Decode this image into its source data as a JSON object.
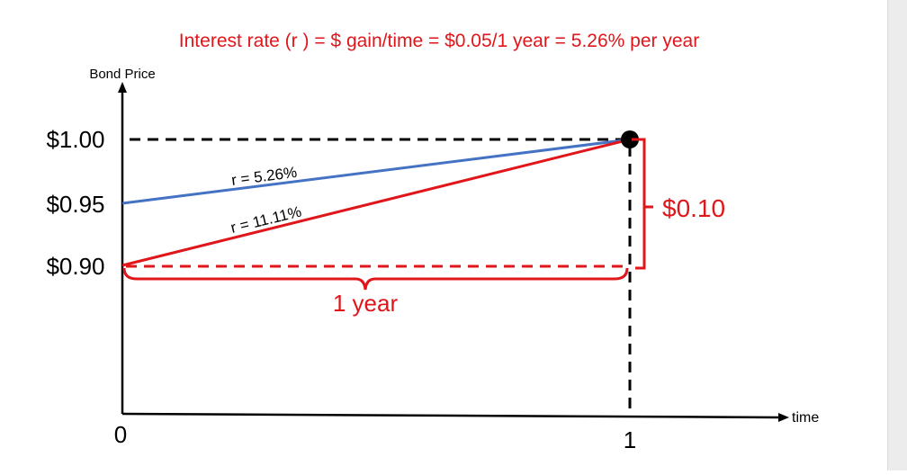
{
  "title": "Interest rate (r ) = $ gain/time = $0.05/1 year = 5.26% per year",
  "y_axis_label": "Bond Price",
  "x_axis_label": "time",
  "y_ticks": [
    {
      "label": "$1.00",
      "value": 1.0
    },
    {
      "label": "$0.95",
      "value": 0.95
    },
    {
      "label": "$0.90",
      "value": 0.9
    }
  ],
  "x_ticks": [
    {
      "label": "0",
      "value": 0
    },
    {
      "label": "1",
      "value": 1
    }
  ],
  "end_point": {
    "time": 1,
    "price": 1.0
  },
  "lines": [
    {
      "label": "r = 5.26%",
      "from": {
        "time": 0,
        "price": 0.95
      },
      "to": {
        "time": 1,
        "price": 1.0
      },
      "color": "#4472c4"
    },
    {
      "label": "r = 11.11%",
      "from": {
        "time": 0,
        "price": 0.9
      },
      "to": {
        "time": 1,
        "price": 1.0
      },
      "color": "#e0161b"
    }
  ],
  "gain_bracket_label": "$0.10",
  "duration_bracket_label": "1 year",
  "colors": {
    "red": "#e0161b",
    "blue": "#4472c4",
    "black": "#000000"
  }
}
